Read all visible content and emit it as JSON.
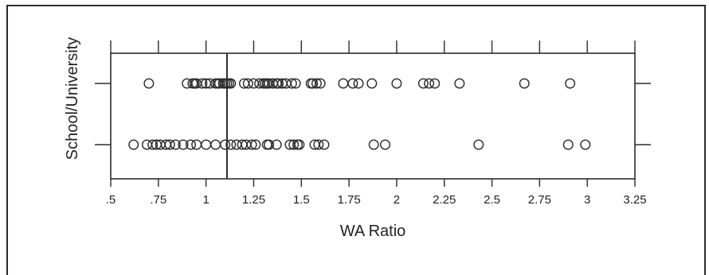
{
  "chart_data": {
    "type": "scatter",
    "title": "",
    "xlabel": "WA Ratio",
    "ylabel": "School/University",
    "xlim": [
      0.5,
      3.25
    ],
    "x_ticks": [
      0.5,
      0.75,
      1,
      1.25,
      1.5,
      1.75,
      2,
      2.25,
      2.5,
      2.75,
      3,
      3.25
    ],
    "x_tick_labels": [
      ".5",
      ".75",
      "1",
      "1.25",
      "1.5",
      "1.75",
      "2",
      "2.25",
      "2.5",
      "2.75",
      "3",
      "3.25"
    ],
    "reference_line_x": 1.11,
    "grid": false,
    "legend": "none",
    "marker": "open-circle",
    "marker_color": "#2b2b2b",
    "rows": [
      {
        "label": "",
        "values": [
          0.7,
          0.9,
          0.93,
          0.94,
          0.95,
          0.98,
          1.0,
          1.02,
          1.05,
          1.06,
          1.07,
          1.09,
          1.1,
          1.11,
          1.12,
          1.13,
          1.2,
          1.22,
          1.25,
          1.28,
          1.3,
          1.31,
          1.32,
          1.33,
          1.35,
          1.37,
          1.38,
          1.4,
          1.42,
          1.45,
          1.47,
          1.55,
          1.56,
          1.58,
          1.6,
          1.72,
          1.77,
          1.8,
          1.87,
          2.0,
          2.14,
          2.17,
          2.2,
          2.33,
          2.67,
          2.91
        ]
      },
      {
        "label": "",
        "values": [
          0.62,
          0.69,
          0.72,
          0.74,
          0.76,
          0.79,
          0.81,
          0.84,
          0.88,
          0.92,
          0.95,
          1.0,
          1.05,
          1.1,
          1.13,
          1.16,
          1.19,
          1.21,
          1.24,
          1.26,
          1.32,
          1.33,
          1.37,
          1.44,
          1.46,
          1.48,
          1.49,
          1.57,
          1.59,
          1.62,
          1.88,
          1.94,
          2.43,
          2.9,
          2.99
        ]
      }
    ]
  }
}
